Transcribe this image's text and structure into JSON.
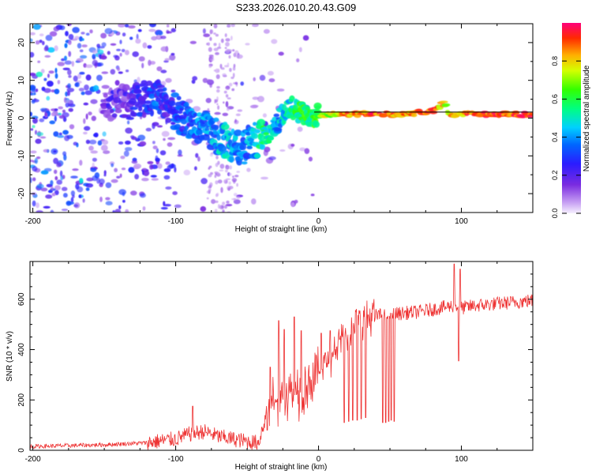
{
  "figure": {
    "title": "S233.2026.010.20.43.G09"
  },
  "chart_data": [
    {
      "type": "heatmap",
      "title": "S233.2026.010.20.43.G09",
      "xlabel": "Height of straight line (km)",
      "ylabel": "Frequency (Hz)",
      "xlim": [
        -202,
        150
      ],
      "ylim": [
        -25,
        25
      ],
      "xticks": [
        -200,
        -100,
        0,
        100
      ],
      "xtick_labels": [
        "-200",
        "-100",
        "0",
        "100"
      ],
      "yticks": [
        20,
        10,
        0,
        -10,
        -20
      ],
      "ytick_labels": [
        "20",
        "10",
        "0",
        "-10",
        "-20"
      ],
      "colorbar": {
        "label": "Normalized spectral amplitude",
        "range": [
          0,
          1
        ],
        "ticks": [
          0.0,
          0.2,
          0.4,
          0.6,
          0.8
        ],
        "tick_labels": [
          "0.0",
          "0.2",
          "0.4",
          "0.6",
          "0.8"
        ],
        "colormap": "rainbow (white-violet-blue-cyan-green-yellow-orange-red)"
      },
      "ridge": {
        "description": "dominant frequency trace vs height",
        "x": [
          -150,
          -130,
          -115,
          -105,
          -95,
          -85,
          -75,
          -65,
          -55,
          -45,
          -38,
          -30,
          -25,
          -20,
          -15,
          -10,
          -5,
          0,
          20,
          40,
          60,
          80,
          88,
          92,
          100,
          120,
          150
        ],
        "y": [
          4,
          4,
          6,
          3,
          0,
          -2,
          -4,
          -6,
          -8,
          -6,
          -5,
          -2,
          1,
          3,
          2,
          1,
          0,
          1,
          1,
          1,
          1,
          2,
          4,
          1,
          1,
          1,
          1
        ],
        "amplitude": [
          0.15,
          0.2,
          0.3,
          0.25,
          0.3,
          0.35,
          0.4,
          0.45,
          0.35,
          0.4,
          0.55,
          0.4,
          0.45,
          0.5,
          0.55,
          0.6,
          0.55,
          0.65,
          0.85,
          0.9,
          0.85,
          0.9,
          0.75,
          0.8,
          0.85,
          0.9,
          0.9
        ]
      }
    },
    {
      "type": "line",
      "xlabel": "Height of straight line (km)",
      "ylabel": "SNR (10 * v/v)",
      "xlim": [
        -202,
        150
      ],
      "ylim": [
        0,
        750
      ],
      "xticks": [
        -200,
        -100,
        0,
        100
      ],
      "xtick_labels": [
        "-200",
        "-100",
        "0",
        "100"
      ],
      "yticks": [
        0,
        200,
        400,
        600
      ],
      "ytick_labels": [
        "0",
        "200",
        "400",
        "600"
      ],
      "color": "#ee3333",
      "series": [
        {
          "name": "SNR",
          "trend_x": [
            -202,
            -150,
            -120,
            -100,
            -90,
            -80,
            -70,
            -60,
            -50,
            -42,
            -38,
            -34,
            -30,
            -25,
            -20,
            -15,
            -10,
            -5,
            0,
            5,
            10,
            15,
            20,
            25,
            30,
            35,
            40,
            50,
            60,
            70,
            80,
            90,
            95,
            100,
            110,
            120,
            130,
            140,
            150
          ],
          "trend_y": [
            15,
            22,
            30,
            45,
            65,
            75,
            55,
            45,
            35,
            30,
            110,
            160,
            200,
            215,
            230,
            250,
            270,
            280,
            300,
            350,
            390,
            430,
            460,
            490,
            510,
            525,
            535,
            540,
            545,
            550,
            560,
            570,
            575,
            565,
            575,
            580,
            585,
            590,
            595
          ],
          "spikes": [
            {
              "x": -88,
              "y": 175
            },
            {
              "x": -34,
              "y": 330
            },
            {
              "x": -28,
              "y": 515
            },
            {
              "x": -24,
              "y": 480
            },
            {
              "x": -17,
              "y": 530
            },
            {
              "x": -12,
              "y": 475
            },
            {
              "x": 2,
              "y": 465
            },
            {
              "x": 8,
              "y": 475
            },
            {
              "x": 95,
              "y": 740
            },
            {
              "x": 99,
              "y": 720
            }
          ],
          "dips": [
            {
              "x": 18,
              "y": 110
            },
            {
              "x": 21,
              "y": 115
            },
            {
              "x": 24,
              "y": 120
            },
            {
              "x": 27,
              "y": 120
            },
            {
              "x": 30,
              "y": 125
            },
            {
              "x": 33,
              "y": 130
            },
            {
              "x": 45,
              "y": 110
            },
            {
              "x": 47,
              "y": 110
            },
            {
              "x": 49,
              "y": 115
            },
            {
              "x": 51,
              "y": 120
            },
            {
              "x": 53,
              "y": 115
            },
            {
              "x": 98,
              "y": 355
            }
          ]
        }
      ]
    }
  ]
}
